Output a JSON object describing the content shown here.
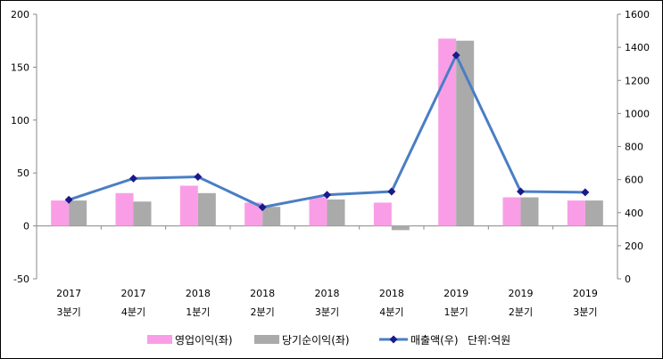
{
  "chart_data": {
    "type": "bar",
    "categories": [
      [
        "2017",
        "3분기"
      ],
      [
        "2017",
        "4분기"
      ],
      [
        "2018",
        "1분기"
      ],
      [
        "2018",
        "2분기"
      ],
      [
        "2018",
        "3분기"
      ],
      [
        "2018",
        "4분기"
      ],
      [
        "2019",
        "1분기"
      ],
      [
        "2019",
        "2분기"
      ],
      [
        "2019",
        "3분기"
      ]
    ],
    "series": [
      {
        "name": "영업이익(좌)",
        "kind": "bar",
        "axis": "left",
        "color": "#f99ee6",
        "values": [
          24,
          31,
          38,
          22,
          27,
          22,
          177,
          27,
          24
        ]
      },
      {
        "name": "당기순이익(좌)",
        "kind": "bar",
        "axis": "left",
        "color": "#aaaaaa",
        "values": [
          24,
          23,
          31,
          18,
          25,
          -4,
          175,
          27,
          24
        ]
      },
      {
        "name": "매출액(우)",
        "kind": "line",
        "axis": "right",
        "color": "#4a7ec4",
        "marker_color": "#1a1a8c",
        "values": [
          478,
          607,
          617,
          433,
          508,
          528,
          1352,
          528,
          523
        ]
      }
    ],
    "ylim_left": [
      -50,
      200
    ],
    "yticks_left": [
      -50,
      0,
      50,
      100,
      150,
      200
    ],
    "ylim_right": [
      0,
      1600
    ],
    "yticks_right": [
      0,
      200,
      400,
      600,
      800,
      1000,
      1200,
      1400,
      1600
    ],
    "grid": false,
    "legend_position": "bottom",
    "legend_note": "단위:억원"
  }
}
